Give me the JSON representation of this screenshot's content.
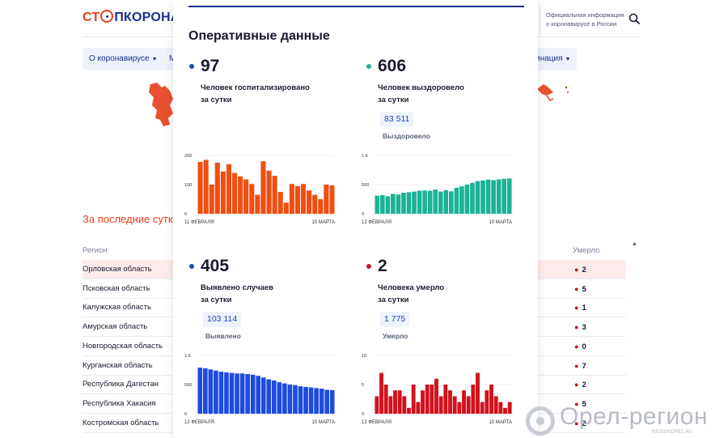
{
  "site": {
    "logo_part1": "СТ",
    "logo_part2": "ПКОРОНАВИ",
    "header_info_line1": "Официальная информация",
    "header_info_line2": "о коронавирусе в России",
    "icons": {
      "search": "search-icon",
      "logo": "virus-logo-icon"
    },
    "nav": [
      {
        "label": "О коронавирусе"
      },
      {
        "label": "М"
      },
      {
        "label": "кцинация"
      }
    ],
    "section_title": "За последние сутки",
    "table": {
      "col_region": "Регион",
      "col_died": "Умерло",
      "rows": [
        {
          "region": "Орловская область",
          "died": "2"
        },
        {
          "region": "Псковская область",
          "died": "5"
        },
        {
          "region": "Калужская область",
          "died": "1"
        },
        {
          "region": "Амурская область",
          "died": "3"
        },
        {
          "region": "Новгородская область",
          "died": "0"
        },
        {
          "region": "Курганская область",
          "died": "7"
        },
        {
          "region": "Республика Дагестан",
          "died": "2"
        },
        {
          "region": "Республика Хакасия",
          "died": "5"
        },
        {
          "region": "Костромская область",
          "died": "2"
        }
      ]
    }
  },
  "modal": {
    "title": "Оперативные данные",
    "stats": [
      {
        "value": "97",
        "label_line1": "Человек госпитализировано",
        "label_line2": "за сутки",
        "total": "",
        "total_label": "",
        "color": "#1c4bb5"
      },
      {
        "value": "606",
        "label_line1": "Человек выздоровело",
        "label_line2": "за сутки",
        "total": "83 511",
        "total_label": "Выздоровело",
        "color": "#1ab394"
      },
      {
        "value": "405",
        "label_line1": "Выявлено случаев",
        "label_line2": "за сутки",
        "total": "103 114",
        "total_label": "Выявлено",
        "color": "#1c4bb5"
      },
      {
        "value": "2",
        "label_line1": "Человека умерло",
        "label_line2": "за сутки",
        "total": "1 775",
        "total_label": "Умерло",
        "color": "#c5162a"
      }
    ]
  },
  "chart_data": [
    {
      "type": "bar",
      "color": "#f04e12",
      "yticks": [
        "200",
        "100",
        "0"
      ],
      "ylim": [
        0,
        200
      ],
      "x_start_label": "11 ФЕВРАЛЯ",
      "x_end_label": "10 МАРТА",
      "values": [
        178,
        185,
        100,
        175,
        145,
        170,
        140,
        128,
        118,
        102,
        65,
        180,
        148,
        130,
        75,
        38,
        102,
        95,
        102,
        80,
        65,
        50,
        100,
        97
      ]
    },
    {
      "type": "bar",
      "color": "#1ab394",
      "yticks": [
        "1 К",
        "500",
        "0"
      ],
      "ylim": [
        0,
        1000
      ],
      "x_start_label": "12 ФЕВРАЛЯ",
      "x_end_label": "10 МАРТА",
      "values": [
        310,
        320,
        300,
        340,
        330,
        360,
        370,
        380,
        395,
        400,
        395,
        415,
        380,
        405,
        385,
        445,
        470,
        500,
        530,
        560,
        570,
        585,
        575,
        590,
        600,
        606
      ]
    },
    {
      "type": "bar",
      "color": "#1c4bde",
      "yticks": [
        "1 К",
        "500",
        "0"
      ],
      "ylim": [
        0,
        1000
      ],
      "x_start_label": "12 ФЕВРАЛЯ",
      "x_end_label": "10 МАРТА",
      "values": [
        790,
        780,
        760,
        740,
        720,
        710,
        700,
        690,
        690,
        680,
        670,
        650,
        620,
        590,
        570,
        540,
        520,
        500,
        490,
        470,
        460,
        450,
        440,
        430,
        410,
        405
      ]
    },
    {
      "type": "bar",
      "color": "#d0121c",
      "yticks": [
        "10",
        "5",
        "0"
      ],
      "ylim": [
        0,
        10
      ],
      "x_start_label": "12 ФЕВРАЛЯ",
      "x_end_label": "10 МАРТА",
      "values": [
        3,
        7,
        5,
        3,
        4,
        4,
        3,
        1,
        5,
        2,
        4,
        5,
        5,
        6,
        3,
        5,
        4,
        3,
        2,
        4,
        3,
        5,
        7,
        2,
        4,
        5,
        3,
        2,
        1,
        2
      ]
    }
  ],
  "watermark": {
    "text": "Орел-регион",
    "sub": "REGIONOREL.RU"
  }
}
